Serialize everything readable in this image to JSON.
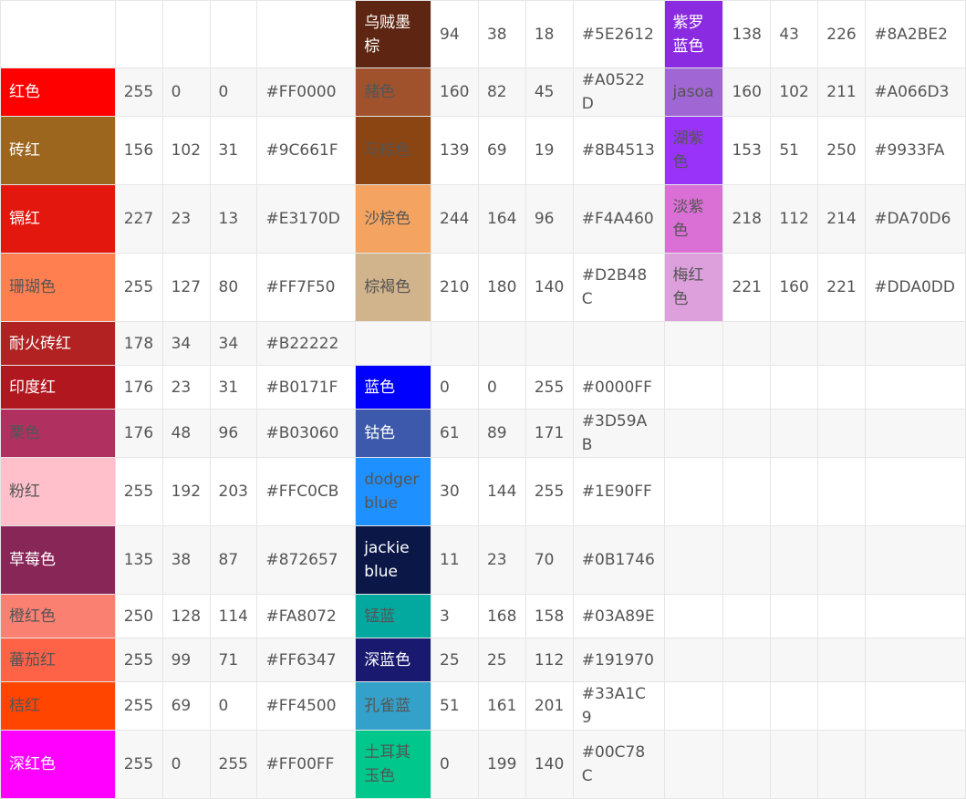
{
  "rows": [
    {
      "cells": [
        {
          "name": "",
          "r": "",
          "g": "",
          "b": "",
          "hex": ""
        },
        {
          "name": "乌贼墨棕",
          "r": "94",
          "g": "38",
          "b": "18",
          "hex": "#5E2612",
          "bg": "#5E2612"
        },
        {
          "name": "紫罗蓝色",
          "r": "138",
          "g": "43",
          "b": "226",
          "hex": "#8A2BE2",
          "bg": "#8A2BE2"
        }
      ]
    },
    {
      "cells": [
        {
          "name": "红色",
          "r": "255",
          "g": "0",
          "b": "0",
          "hex": "#FF0000",
          "bg": "#FF0000"
        },
        {
          "name": "赭色",
          "r": "160",
          "g": "82",
          "b": "45",
          "hex": "#A0522D",
          "bg": "#A0522D",
          "dark": true
        },
        {
          "name": "jasoa",
          "r": "160",
          "g": "102",
          "b": "211",
          "hex": "#A066D3",
          "bg": "#A066D3",
          "dark": true
        }
      ]
    },
    {
      "cells": [
        {
          "name": "砖红",
          "r": "156",
          "g": "102",
          "b": "31",
          "hex": "#9C661F",
          "bg": "#9C661F"
        },
        {
          "name": "马棕色",
          "r": "139",
          "g": "69",
          "b": "19",
          "hex": "#8B4513",
          "bg": "#8B4513",
          "dark": true
        },
        {
          "name": "湖紫色",
          "r": "153",
          "g": "51",
          "b": "250",
          "hex": "#9933FA",
          "bg": "#9933FA",
          "dark": true
        }
      ]
    },
    {
      "cells": [
        {
          "name": "镉红",
          "r": "227",
          "g": "23",
          "b": "13",
          "hex": "#E3170D",
          "bg": "#E3170D"
        },
        {
          "name": "沙棕色",
          "r": "244",
          "g": "164",
          "b": "96",
          "hex": "#F4A460",
          "bg": "#F4A460",
          "dark": true
        },
        {
          "name": "淡紫色",
          "r": "218",
          "g": "112",
          "b": "214",
          "hex": "#DA70D6",
          "bg": "#DA70D6",
          "dark": true
        }
      ]
    },
    {
      "cells": [
        {
          "name": "珊瑚色",
          "r": "255",
          "g": "127",
          "b": "80",
          "hex": "#FF7F50",
          "bg": "#FF7F50",
          "dark": true
        },
        {
          "name": "棕褐色",
          "r": "210",
          "g": "180",
          "b": "140",
          "hex": "#D2B48C",
          "bg": "#D2B48C",
          "dark": true
        },
        {
          "name": "梅红色",
          "r": "221",
          "g": "160",
          "b": "221",
          "hex": "#DDA0DD",
          "bg": "#DDA0DD",
          "dark": true
        }
      ]
    },
    {
      "cells": [
        {
          "name": "耐火砖红",
          "r": "178",
          "g": "34",
          "b": "34",
          "hex": "#B22222",
          "bg": "#B22222"
        },
        {
          "name": "",
          "r": "",
          "g": "",
          "b": "",
          "hex": ""
        },
        {
          "name": "",
          "r": "",
          "g": "",
          "b": "",
          "hex": ""
        }
      ]
    },
    {
      "cells": [
        {
          "name": "印度红",
          "r": "176",
          "g": "23",
          "b": "31",
          "hex": "#B0171F",
          "bg": "#B0171F"
        },
        {
          "name": "蓝色",
          "r": "0",
          "g": "0",
          "b": "255",
          "hex": "#0000FF",
          "bg": "#0000FF"
        },
        {
          "name": "",
          "r": "",
          "g": "",
          "b": "",
          "hex": ""
        }
      ]
    },
    {
      "cells": [
        {
          "name": "栗色",
          "r": "176",
          "g": "48",
          "b": "96",
          "hex": "#B03060",
          "bg": "#B03060",
          "dark": true
        },
        {
          "name": "钴色",
          "r": "61",
          "g": "89",
          "b": "171",
          "hex": "#3D59AB",
          "bg": "#3D59AB"
        },
        {
          "name": "",
          "r": "",
          "g": "",
          "b": "",
          "hex": ""
        }
      ]
    },
    {
      "cells": [
        {
          "name": "粉红",
          "r": "255",
          "g": "192",
          "b": "203",
          "hex": "#FFC0CB",
          "bg": "#FFC0CB",
          "dark": true
        },
        {
          "name": "dodger blue",
          "r": "30",
          "g": "144",
          "b": "255",
          "hex": "#1E90FF",
          "bg": "#1E90FF",
          "dark": true
        },
        {
          "name": "",
          "r": "",
          "g": "",
          "b": "",
          "hex": ""
        }
      ]
    },
    {
      "cells": [
        {
          "name": "草莓色",
          "r": "135",
          "g": "38",
          "b": "87",
          "hex": "#872657",
          "bg": "#872657"
        },
        {
          "name": "jackie blue",
          "r": "11",
          "g": "23",
          "b": "70",
          "hex": "#0B1746",
          "bg": "#0B1746"
        },
        {
          "name": "",
          "r": "",
          "g": "",
          "b": "",
          "hex": ""
        }
      ]
    },
    {
      "cells": [
        {
          "name": "橙红色",
          "r": "250",
          "g": "128",
          "b": "114",
          "hex": "#FA8072",
          "bg": "#FA8072",
          "dark": true
        },
        {
          "name": "锰蓝",
          "r": "3",
          "g": "168",
          "b": "158",
          "hex": "#03A89E",
          "bg": "#03A89E",
          "dark": true
        },
        {
          "name": "",
          "r": "",
          "g": "",
          "b": "",
          "hex": ""
        }
      ]
    },
    {
      "cells": [
        {
          "name": "蕃茄红",
          "r": "255",
          "g": "99",
          "b": "71",
          "hex": "#FF6347",
          "bg": "#FF6347",
          "dark": true
        },
        {
          "name": "深蓝色",
          "r": "25",
          "g": "25",
          "b": "112",
          "hex": "#191970",
          "bg": "#191970"
        },
        {
          "name": "",
          "r": "",
          "g": "",
          "b": "",
          "hex": ""
        }
      ]
    },
    {
      "cells": [
        {
          "name": "桔红",
          "r": "255",
          "g": "69",
          "b": "0",
          "hex": "#FF4500",
          "bg": "#FF4500",
          "dark": true
        },
        {
          "name": "孔雀蓝",
          "r": "51",
          "g": "161",
          "b": "201",
          "hex": "#33A1C9",
          "bg": "#33A1C9",
          "dark": true
        },
        {
          "name": "",
          "r": "",
          "g": "",
          "b": "",
          "hex": ""
        }
      ]
    },
    {
      "cells": [
        {
          "name": "深红色",
          "r": "255",
          "g": "0",
          "b": "255",
          "hex": "#FF00FF",
          "bg": "#FF00FF"
        },
        {
          "name": "土耳其玉色",
          "r": "0",
          "g": "199",
          "b": "140",
          "hex": "#00C78C",
          "bg": "#00C78C",
          "dark": true
        },
        {
          "name": "",
          "r": "",
          "g": "",
          "b": "",
          "hex": ""
        }
      ]
    }
  ]
}
